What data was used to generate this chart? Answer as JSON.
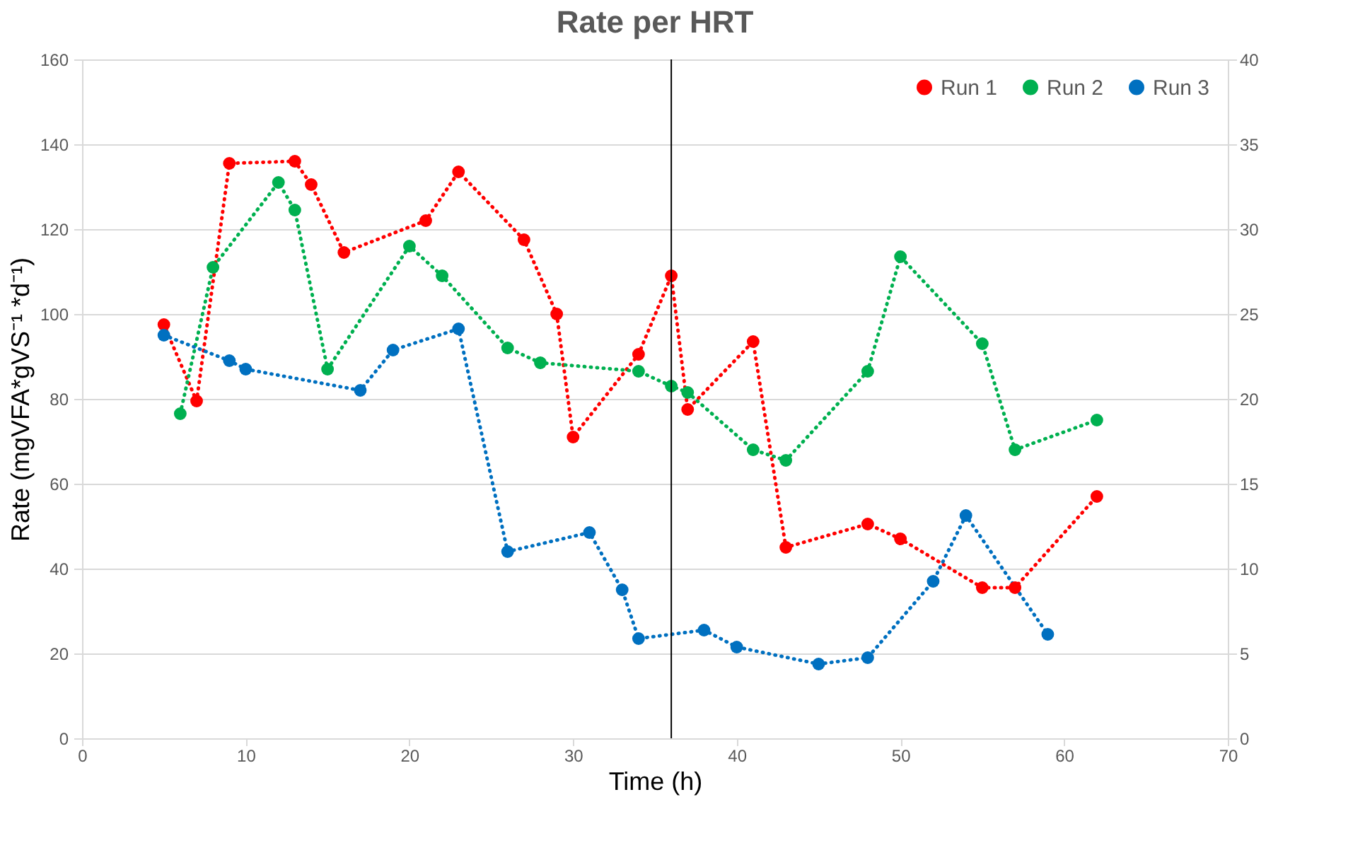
{
  "chart_data": {
    "type": "line",
    "title": "Rate per HRT",
    "xlabel": "Time (h)",
    "ylabel": "Rate (mgVFA*gVS⁻¹ *d⁻¹)",
    "xlim": [
      0,
      70
    ],
    "xticks": [
      0,
      10,
      20,
      30,
      40,
      50,
      60,
      70
    ],
    "ylim": [
      0,
      160
    ],
    "yticks": [
      0,
      20,
      40,
      60,
      80,
      100,
      120,
      140,
      160
    ],
    "y2lim": [
      0,
      40
    ],
    "y2ticks": [
      0,
      5,
      10,
      15,
      20,
      25,
      30,
      35,
      40
    ],
    "grid": "y",
    "legend": "top right",
    "marker": "circle",
    "line_style": "dotted",
    "ref_lines": [
      {
        "axis": "x",
        "value": 36,
        "color": "#000000",
        "line_style": "solid"
      }
    ],
    "series": [
      {
        "name": "Run 1",
        "color": "#ff0000",
        "x": [
          5,
          7,
          9,
          13,
          14,
          16,
          21,
          23,
          27,
          29,
          30,
          34,
          36,
          37,
          41,
          43,
          48,
          50,
          55,
          57,
          62
        ],
        "values": [
          97.5,
          79.5,
          135.5,
          136,
          130.5,
          114.5,
          122,
          133.5,
          117.5,
          100,
          71,
          90.5,
          109,
          77.5,
          93.5,
          45,
          50.5,
          47,
          35.5,
          35.5,
          57
        ]
      },
      {
        "name": "Run 2",
        "color": "#00b050",
        "x": [
          6,
          8,
          12,
          13,
          15,
          20,
          22,
          26,
          28,
          34,
          36,
          37,
          41,
          43,
          48,
          50,
          55,
          57,
          62
        ],
        "values": [
          76.5,
          111,
          131,
          124.5,
          87,
          116,
          109,
          92,
          88.5,
          86.5,
          83,
          81.5,
          68,
          65.5,
          86.5,
          113.5,
          93,
          68,
          75
        ]
      },
      {
        "name": "Run 3",
        "color": "#0070c0",
        "x": [
          5,
          9,
          10,
          17,
          19,
          23,
          26,
          31,
          33,
          34,
          38,
          40,
          45,
          48,
          52,
          54,
          59
        ],
        "values": [
          95,
          89,
          87,
          82,
          91.5,
          96.5,
          44,
          48.5,
          35,
          23.5,
          25.5,
          21.5,
          17.5,
          19,
          37,
          52.5,
          24.5
        ]
      }
    ]
  }
}
